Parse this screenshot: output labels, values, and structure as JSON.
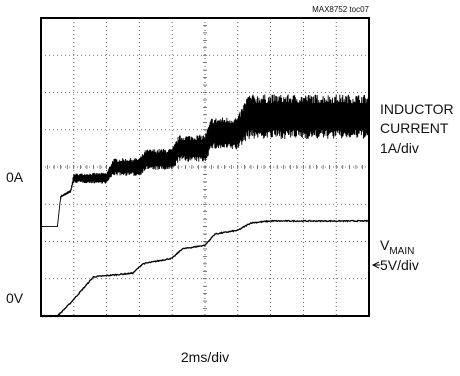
{
  "chart_data": {
    "type": "line",
    "source_tag": "MAX8752 toc07",
    "x_scale": "2ms/div",
    "grid": true,
    "grid_divisions": {
      "x": 10,
      "y": 8
    },
    "series": [
      {
        "name": "INDUCTOR CURRENT",
        "scale_line1": "INDUCTOR",
        "scale_line2": "CURRENT",
        "scale": "1A/div",
        "zero_label": "0A",
        "zero_division": 2.4,
        "color": "#000000",
        "time_div": [
          0.0,
          0.5,
          0.6,
          0.9,
          1.0,
          2.0,
          2.2,
          3.0,
          3.2,
          4.0,
          4.2,
          5.0,
          5.2,
          6.0,
          6.3,
          10.0
        ],
        "center_div": [
          0.0,
          0.0,
          0.8,
          0.95,
          1.3,
          1.3,
          1.6,
          1.6,
          1.8,
          1.8,
          2.1,
          2.1,
          2.5,
          2.5,
          2.95,
          2.95
        ],
        "ripple_div": [
          0.0,
          0.0,
          0.05,
          0.08,
          0.25,
          0.3,
          0.45,
          0.5,
          0.55,
          0.6,
          0.7,
          0.75,
          0.85,
          0.9,
          1.2,
          1.2
        ]
      },
      {
        "name": "VMAIN",
        "label_main": "V",
        "label_sub": "MAIN",
        "scale": "5V/div",
        "zero_label": "0V",
        "zero_division": 0.0,
        "color": "#000000",
        "time_div": [
          0.0,
          0.5,
          0.9,
          1.6,
          2.8,
          3.1,
          4.0,
          4.3,
          5.0,
          5.3,
          6.0,
          6.4,
          7.0,
          10.0
        ],
        "level_div": [
          0.0,
          0.0,
          0.35,
          1.05,
          1.15,
          1.4,
          1.55,
          1.8,
          1.9,
          2.2,
          2.3,
          2.5,
          2.55,
          2.55
        ]
      }
    ]
  }
}
